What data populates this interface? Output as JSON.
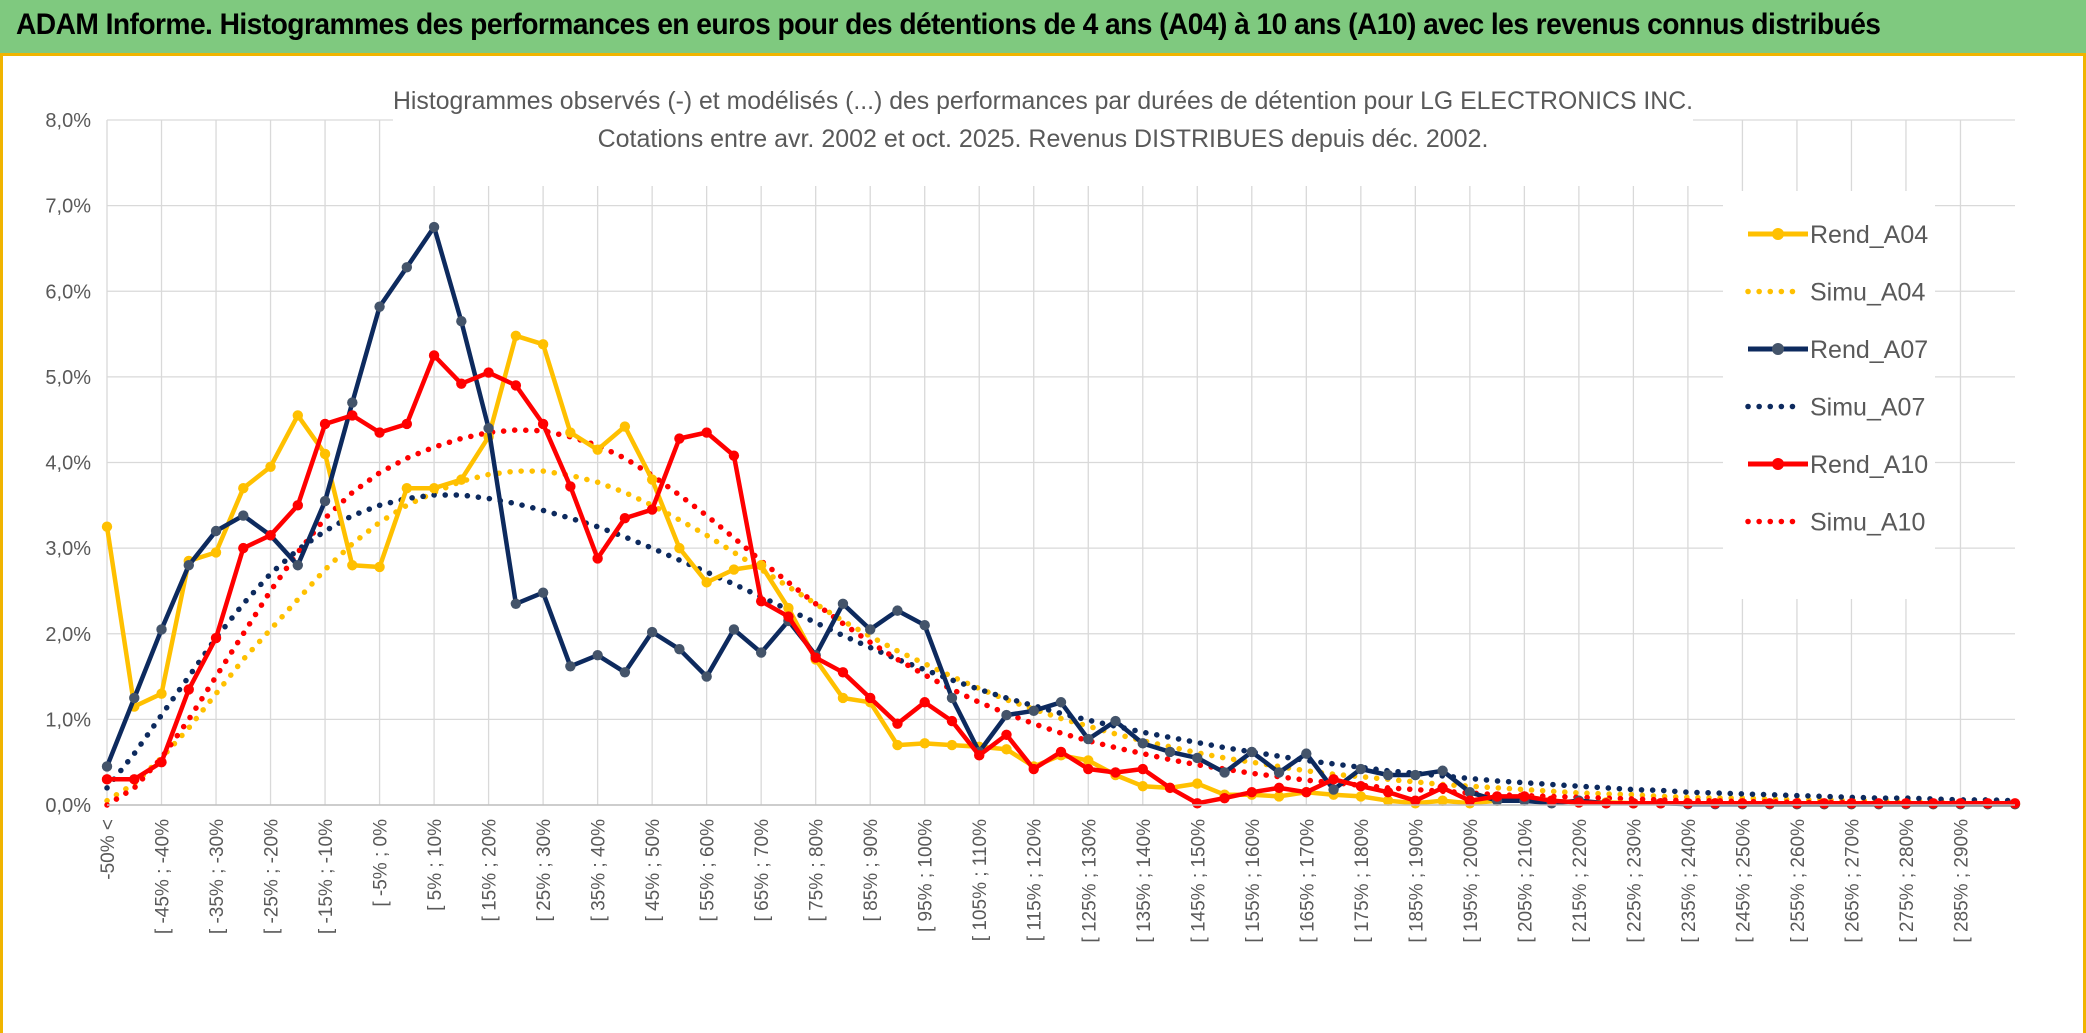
{
  "banner": {
    "title": "ADAM Informe. Histogrammes des performances en euros pour des détentions de 4 ans (A04) à 10 ans (A10) avec les revenus connus distribués"
  },
  "colors": {
    "A04": "#ffc000",
    "A07": "#0d2a5e",
    "A10": "#ff0000",
    "grid": "#d9d9d9",
    "banner": "#7fc97f"
  },
  "chart_data": {
    "type": "line",
    "title": "Histogrammes observés (-) et modélisés (...) des performances par durées de détention pour LG ELECTRONICS INC.",
    "subtitle": "Cotations entre avr. 2002 et oct. 2025. Revenus DISTRIBUES depuis déc. 2002.",
    "ylim": [
      0,
      8
    ],
    "yticks": [
      "0,0%",
      "1,0%",
      "2,0%",
      "3,0%",
      "4,0%",
      "5,0%",
      "6,0%",
      "7,0%",
      "8,0%"
    ],
    "grid": true,
    "legend_position": "right",
    "x_labels": [
      "-50% <",
      "[ -45% ; -40%",
      "[ -35% ; -30%",
      "[ -25% ; -20%",
      "[ -15% ; -10%",
      "[ -5% ; 0%",
      "[ 5% ; 10%",
      "[ 15% ; 20%",
      "[ 25% ; 30%",
      "[ 35% ; 40%",
      "[ 45% ; 50%",
      "[ 55% ; 60%",
      "[ 65% ; 70%",
      "[ 75% ; 80%",
      "[ 85% ; 90%",
      "[ 95% ; 100%",
      "[ 105% ; 110%",
      "[ 115% ; 120%",
      "[ 125% ; 130%",
      "[ 135% ; 140%",
      "[ 145% ; 150%",
      "[ 155% ; 160%",
      "[ 165% ; 170%",
      "[ 175% ; 180%",
      "[ 185% ; 190%",
      "[ 195% ; 200%",
      "[ 205% ; 210%",
      "[ 215% ; 220%",
      "[ 225% ; 230%",
      "[ 235% ; 240%",
      "[ 245% ; 250%",
      "[ 255% ; 260%",
      "[ 265% ; 270%",
      "[ 275% ; 280%",
      "[ 285% ; 290%"
    ],
    "series": [
      {
        "name": "Rend_A04",
        "style": "solid",
        "color": "#ffc000",
        "values": [
          3.25,
          1.15,
          1.3,
          2.85,
          2.95,
          3.7,
          3.95,
          4.55,
          4.1,
          2.8,
          2.78,
          3.7,
          3.7,
          3.8,
          4.3,
          5.48,
          5.38,
          4.35,
          4.15,
          4.42,
          3.8,
          3.0,
          2.6,
          2.75,
          2.8,
          2.3,
          1.7,
          1.25,
          1.2,
          0.7,
          0.72,
          0.7,
          0.68,
          0.65,
          0.45,
          0.58,
          0.52,
          0.35,
          0.22,
          0.2,
          0.25,
          0.12,
          0.12,
          0.1,
          0.15,
          0.12,
          0.1,
          0.05,
          0.02,
          0.05,
          0.02,
          0.05,
          0.1,
          0.05,
          0.03,
          0.03,
          0.02,
          0.02,
          0.02,
          0.02,
          0.01,
          0.01,
          0.01,
          0.01,
          0.01,
          0.01,
          0.01,
          0.01,
          0.01,
          0.01,
          0.01
        ]
      },
      {
        "name": "Simu_A04",
        "style": "dotted",
        "color": "#ffc000",
        "values": [
          0.05,
          0.25,
          0.55,
          0.9,
          1.3,
          1.7,
          2.05,
          2.4,
          2.75,
          3.05,
          3.3,
          3.5,
          3.65,
          3.78,
          3.86,
          3.9,
          3.9,
          3.85,
          3.77,
          3.65,
          3.5,
          3.33,
          3.15,
          2.95,
          2.75,
          2.55,
          2.35,
          2.15,
          1.97,
          1.8,
          1.65,
          1.5,
          1.36,
          1.23,
          1.12,
          1.01,
          0.92,
          0.83,
          0.75,
          0.68,
          0.61,
          0.55,
          0.5,
          0.45,
          0.4,
          0.36,
          0.33,
          0.3,
          0.27,
          0.24,
          0.22,
          0.2,
          0.18,
          0.16,
          0.14,
          0.13,
          0.12,
          0.1,
          0.09,
          0.08,
          0.08,
          0.07,
          0.06,
          0.06,
          0.05,
          0.05,
          0.04,
          0.04,
          0.03,
          0.03,
          0.03
        ]
      },
      {
        "name": "Rend_A07",
        "style": "solid",
        "color": "#0d2a5e",
        "values": [
          0.45,
          1.25,
          2.05,
          2.8,
          3.2,
          3.38,
          3.15,
          2.8,
          3.55,
          4.7,
          5.82,
          6.28,
          6.75,
          5.65,
          4.4,
          2.35,
          2.48,
          1.62,
          1.75,
          1.55,
          2.02,
          1.82,
          1.5,
          2.05,
          1.78,
          2.15,
          1.75,
          2.35,
          2.05,
          2.27,
          2.1,
          1.25,
          0.62,
          1.05,
          1.1,
          1.2,
          0.77,
          0.98,
          0.72,
          0.62,
          0.55,
          0.38,
          0.62,
          0.38,
          0.6,
          0.18,
          0.42,
          0.35,
          0.35,
          0.4,
          0.15,
          0.05,
          0.05,
          0.02,
          0.05,
          0.02,
          0.02,
          0.02,
          0.01,
          0.01,
          0.01,
          0.01,
          0.01,
          0.01,
          0.01,
          0.01,
          0.01,
          0.01,
          0.01,
          0.01,
          0.01
        ]
      },
      {
        "name": "Simu_A07",
        "style": "dotted",
        "color": "#0d2a5e",
        "values": [
          0.2,
          0.6,
          1.05,
          1.5,
          1.95,
          2.35,
          2.7,
          2.98,
          3.2,
          3.38,
          3.5,
          3.58,
          3.62,
          3.62,
          3.58,
          3.52,
          3.44,
          3.35,
          3.25,
          3.13,
          3.0,
          2.86,
          2.72,
          2.58,
          2.43,
          2.28,
          2.13,
          1.98,
          1.84,
          1.7,
          1.58,
          1.46,
          1.35,
          1.25,
          1.16,
          1.07,
          0.99,
          0.92,
          0.85,
          0.79,
          0.73,
          0.67,
          0.62,
          0.57,
          0.52,
          0.48,
          0.44,
          0.4,
          0.37,
          0.34,
          0.31,
          0.28,
          0.26,
          0.24,
          0.22,
          0.2,
          0.18,
          0.17,
          0.15,
          0.14,
          0.13,
          0.12,
          0.11,
          0.1,
          0.09,
          0.08,
          0.08,
          0.07,
          0.06,
          0.06,
          0.05
        ]
      },
      {
        "name": "Rend_A10",
        "style": "solid",
        "color": "#ff0000",
        "values": [
          0.3,
          0.3,
          0.5,
          1.35,
          1.95,
          3.0,
          3.15,
          3.5,
          4.45,
          4.55,
          4.35,
          4.45,
          5.25,
          4.92,
          5.05,
          4.9,
          4.45,
          3.72,
          2.88,
          3.35,
          3.45,
          4.28,
          4.35,
          4.08,
          2.38,
          2.2,
          1.72,
          1.55,
          1.25,
          0.95,
          1.2,
          0.98,
          0.58,
          0.82,
          0.42,
          0.62,
          0.42,
          0.38,
          0.42,
          0.2,
          0.02,
          0.08,
          0.15,
          0.2,
          0.15,
          0.3,
          0.22,
          0.15,
          0.05,
          0.2,
          0.05,
          0.1,
          0.1,
          0.05,
          0.03,
          0.02,
          0.02,
          0.02,
          0.02,
          0.02,
          0.02,
          0.02,
          0.02,
          0.02,
          0.02,
          0.02,
          0.02,
          0.02,
          0.02,
          0.02,
          0.02
        ]
      },
      {
        "name": "Simu_A10",
        "style": "dotted",
        "color": "#ff0000",
        "values": [
          0.0,
          0.2,
          0.55,
          1.0,
          1.5,
          2.0,
          2.5,
          2.95,
          3.35,
          3.65,
          3.88,
          4.05,
          4.18,
          4.28,
          4.35,
          4.38,
          4.37,
          4.3,
          4.2,
          4.05,
          3.85,
          3.62,
          3.38,
          3.12,
          2.85,
          2.6,
          2.35,
          2.12,
          1.9,
          1.7,
          1.52,
          1.35,
          1.2,
          1.07,
          0.95,
          0.84,
          0.75,
          0.67,
          0.6,
          0.53,
          0.47,
          0.42,
          0.37,
          0.33,
          0.29,
          0.26,
          0.23,
          0.2,
          0.18,
          0.16,
          0.14,
          0.12,
          0.11,
          0.1,
          0.09,
          0.08,
          0.07,
          0.06,
          0.05,
          0.05,
          0.04,
          0.04,
          0.03,
          0.03,
          0.03,
          0.02,
          0.02,
          0.02,
          0.02,
          0.02,
          0.02
        ]
      }
    ]
  }
}
